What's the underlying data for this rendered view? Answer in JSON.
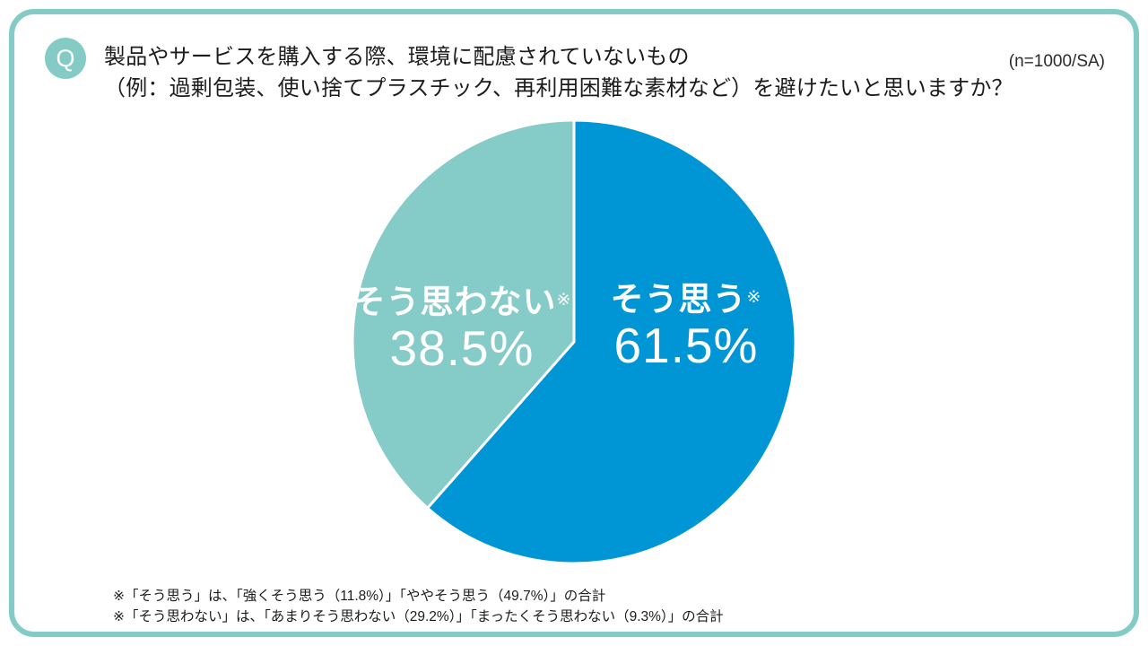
{
  "theme": {
    "accent_teal": "#84cbc6",
    "slice_blue": "#0095d4",
    "slice_teal": "#85cbc7",
    "label_text_color": "#ffffff",
    "body_text_color": "#1c1c1c"
  },
  "header": {
    "badge": "Q",
    "question_line1": "製品やサービスを購入する際、環境に配慮されていないもの",
    "question_line2": "（例：過剰包装、使い捨てプラスチック、再利用困難な素材など）を避けたいと思いますか？",
    "sample_label": "(n=1000/SA)"
  },
  "chart_data": {
    "type": "pie",
    "title": "製品やサービスを購入する際、環境に配慮されていないもの（例：過剰包装、使い捨てプラスチック、再利用困難な素材など）を避けたいと思いますか？",
    "sample": "n=1000/SA",
    "start_angle_deg": 0,
    "direction": "clockwise",
    "slices": [
      {
        "label": "そう思う",
        "note_marker": "※",
        "value": 61.5,
        "display": "61.5%",
        "color": "#0095d4"
      },
      {
        "label": "そう思わない",
        "note_marker": "※",
        "value": 38.5,
        "display": "38.5%",
        "color": "#85cbc7"
      }
    ],
    "legend_position": "inside-slices",
    "footnotes": [
      "※「そう思う」は、「強くそう思う（11.8%）」「ややそう思う（49.7%）」の合計",
      "※「そう思わない」は、「あまりそう思わない（29.2%）」「まったくそう思わない（9.3%）」の合計"
    ]
  }
}
